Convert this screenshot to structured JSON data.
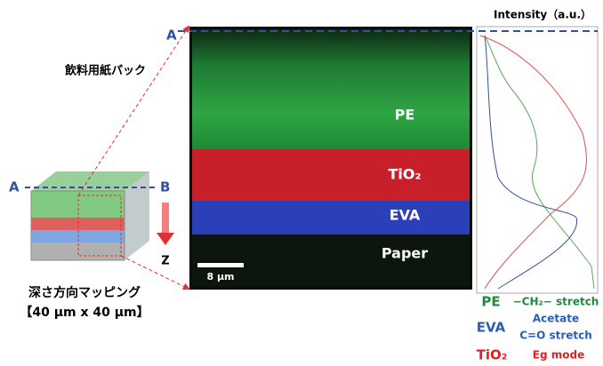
{
  "header": {
    "intensity_label": "Intensity（a.u.）",
    "marker_a_top": "A"
  },
  "sample": {
    "title": "飲料用紙パック",
    "marker_a": "A",
    "marker_b": "B",
    "axis_z": "Z",
    "caption_1": "深さ方向マッピング",
    "caption_2": "【40 μm x 40 μm】"
  },
  "image": {
    "layers": [
      "PE",
      "TiO₂",
      "EVA",
      "Paper"
    ],
    "scale_bar": "8 μm"
  },
  "legend": [
    {
      "name": "PE",
      "desc": [
        "−CH₂− stretch"
      ]
    },
    {
      "name": "EVA",
      "desc": [
        "Acetate",
        "C=O stretch"
      ]
    },
    {
      "name": "TiO₂",
      "desc": [
        "Eg mode"
      ]
    }
  ]
}
